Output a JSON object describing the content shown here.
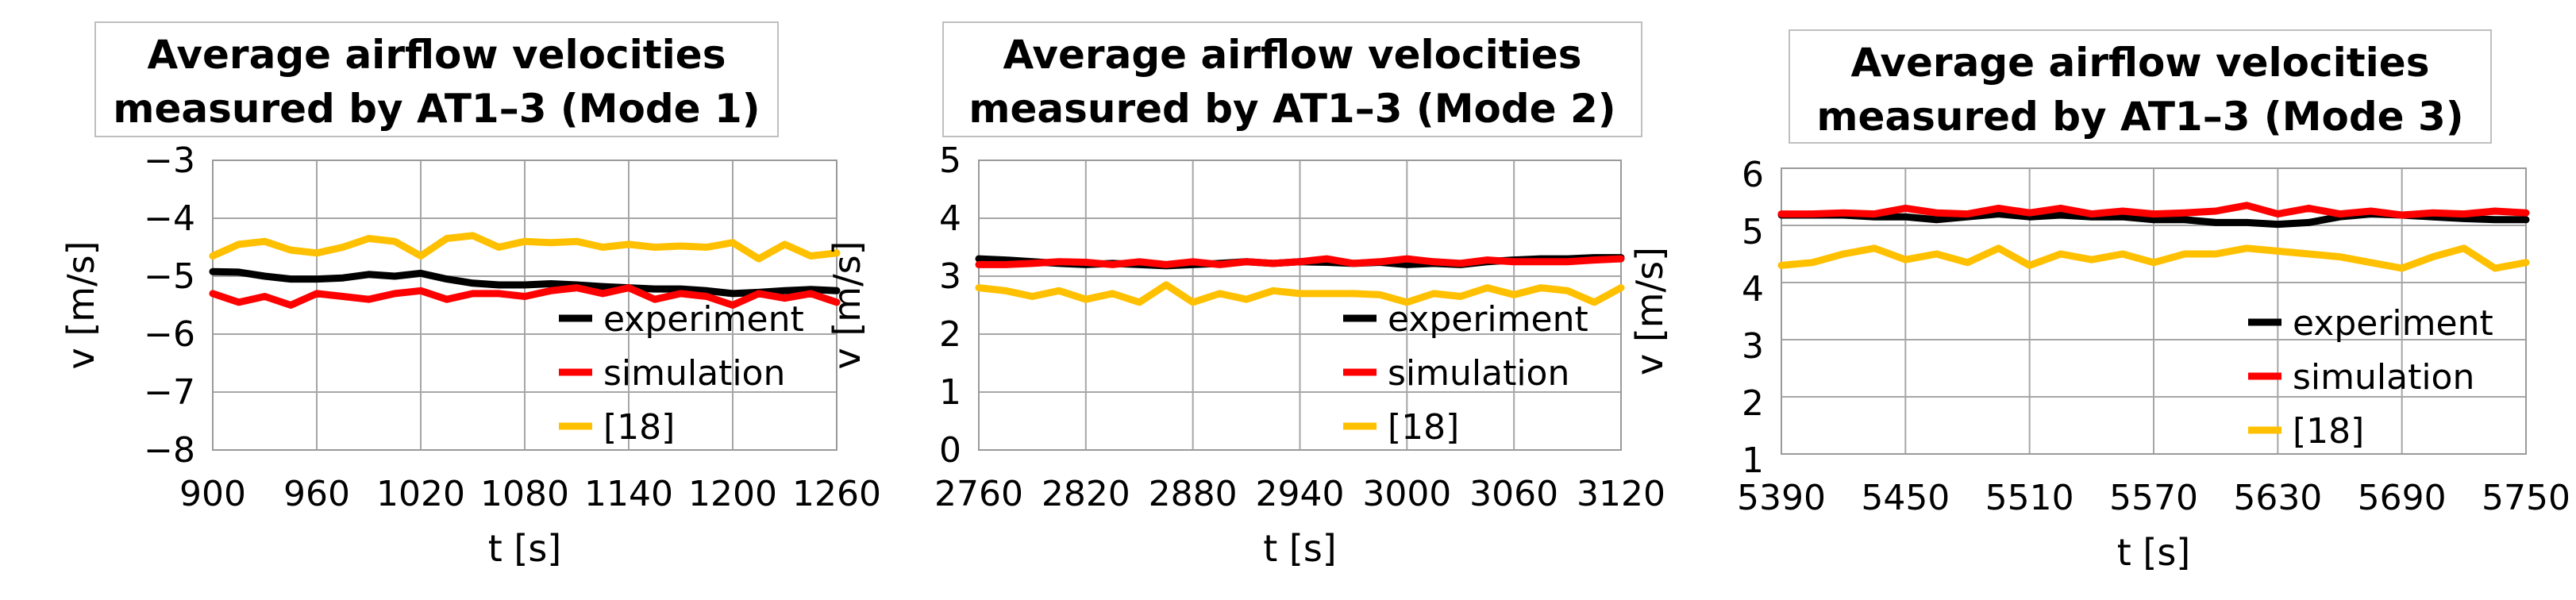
{
  "chart_data": [
    {
      "type": "line",
      "title": [
        "Average airflow velocities",
        "measured by AT1–3 (Mode 1)"
      ],
      "xlabel": "t [s]",
      "ylabel": "v [m/s]",
      "xlim": [
        900,
        1260
      ],
      "ylim": [
        -8,
        -3
      ],
      "xticks": [
        900,
        960,
        1020,
        1080,
        1140,
        1200,
        1260
      ],
      "yticks": [
        -8,
        -7,
        -6,
        -5,
        -4,
        -3
      ],
      "xtick_labels": [
        "900",
        "960",
        "1020",
        "1080",
        "1140",
        "1200",
        "1260"
      ],
      "ytick_labels": [
        "−8",
        "−7",
        "−6",
        "−5",
        "−4",
        "−3"
      ],
      "grid": true,
      "legend_position": "bottom-right",
      "series": [
        {
          "name": "experiment",
          "color": "#000000",
          "x": [
            900,
            915,
            930,
            945,
            960,
            975,
            990,
            1005,
            1020,
            1035,
            1050,
            1065,
            1080,
            1095,
            1110,
            1125,
            1140,
            1155,
            1170,
            1185,
            1200,
            1215,
            1230,
            1245,
            1260
          ],
          "y": [
            -4.92,
            -4.93,
            -5.0,
            -5.05,
            -5.05,
            -5.03,
            -4.97,
            -5.0,
            -4.95,
            -5.05,
            -5.12,
            -5.15,
            -5.15,
            -5.13,
            -5.15,
            -5.18,
            -5.2,
            -5.22,
            -5.22,
            -5.25,
            -5.3,
            -5.28,
            -5.25,
            -5.23,
            -5.25
          ]
        },
        {
          "name": "simulation",
          "color": "#ff0000",
          "x": [
            900,
            915,
            930,
            945,
            960,
            975,
            990,
            1005,
            1020,
            1035,
            1050,
            1065,
            1080,
            1095,
            1110,
            1125,
            1140,
            1155,
            1170,
            1185,
            1200,
            1215,
            1230,
            1245,
            1260
          ],
          "y": [
            -5.3,
            -5.45,
            -5.35,
            -5.5,
            -5.3,
            -5.35,
            -5.4,
            -5.3,
            -5.25,
            -5.4,
            -5.3,
            -5.3,
            -5.35,
            -5.25,
            -5.2,
            -5.3,
            -5.2,
            -5.4,
            -5.3,
            -5.35,
            -5.5,
            -5.3,
            -5.38,
            -5.3,
            -5.45
          ]
        },
        {
          "name": "[18]",
          "color": "#ffc000",
          "x": [
            900,
            915,
            930,
            945,
            960,
            975,
            990,
            1005,
            1020,
            1035,
            1050,
            1065,
            1080,
            1095,
            1110,
            1125,
            1140,
            1155,
            1170,
            1185,
            1200,
            1215,
            1230,
            1245,
            1260
          ],
          "y": [
            -4.65,
            -4.45,
            -4.4,
            -4.55,
            -4.6,
            -4.5,
            -4.35,
            -4.4,
            -4.65,
            -4.35,
            -4.3,
            -4.5,
            -4.4,
            -4.42,
            -4.4,
            -4.5,
            -4.45,
            -4.5,
            -4.48,
            -4.5,
            -4.42,
            -4.7,
            -4.45,
            -4.65,
            -4.6
          ]
        }
      ]
    },
    {
      "type": "line",
      "title": [
        "Average airflow velocities",
        "measured by AT1–3 (Mode 2)"
      ],
      "xlabel": "t [s]",
      "ylabel": "v [m/s]",
      "xlim": [
        2760,
        3120
      ],
      "ylim": [
        0,
        5
      ],
      "xticks": [
        2760,
        2820,
        2880,
        2940,
        3000,
        3060,
        3120
      ],
      "yticks": [
        0,
        1,
        2,
        3,
        4,
        5
      ],
      "xtick_labels": [
        "2760",
        "2820",
        "2880",
        "2940",
        "3000",
        "3060",
        "3120"
      ],
      "ytick_labels": [
        "0",
        "1",
        "2",
        "3",
        "4",
        "5"
      ],
      "grid": true,
      "legend_position": "bottom-right",
      "series": [
        {
          "name": "experiment",
          "color": "#000000",
          "x": [
            2760,
            2775,
            2790,
            2805,
            2820,
            2835,
            2850,
            2865,
            2880,
            2895,
            2910,
            2925,
            2940,
            2955,
            2970,
            2985,
            3000,
            3015,
            3030,
            3045,
            3060,
            3075,
            3090,
            3105,
            3120
          ],
          "y": [
            3.3,
            3.28,
            3.25,
            3.22,
            3.2,
            3.22,
            3.2,
            3.18,
            3.2,
            3.22,
            3.25,
            3.22,
            3.25,
            3.24,
            3.22,
            3.24,
            3.2,
            3.22,
            3.2,
            3.25,
            3.28,
            3.3,
            3.3,
            3.32,
            3.32
          ]
        },
        {
          "name": "simulation",
          "color": "#ff0000",
          "x": [
            2760,
            2775,
            2790,
            2805,
            2820,
            2835,
            2850,
            2865,
            2880,
            2895,
            2910,
            2925,
            2940,
            2955,
            2970,
            2985,
            3000,
            3015,
            3030,
            3045,
            3060,
            3075,
            3090,
            3105,
            3120
          ],
          "y": [
            3.2,
            3.2,
            3.22,
            3.25,
            3.24,
            3.2,
            3.25,
            3.2,
            3.25,
            3.2,
            3.25,
            3.22,
            3.25,
            3.3,
            3.22,
            3.25,
            3.3,
            3.25,
            3.22,
            3.28,
            3.25,
            3.25,
            3.25,
            3.28,
            3.3
          ]
        },
        {
          "name": "[18]",
          "color": "#ffc000",
          "x": [
            2760,
            2775,
            2790,
            2805,
            2820,
            2835,
            2850,
            2865,
            2880,
            2895,
            2910,
            2925,
            2940,
            2955,
            2970,
            2985,
            3000,
            3015,
            3030,
            3045,
            3060,
            3075,
            3090,
            3105,
            3120
          ],
          "y": [
            2.8,
            2.75,
            2.65,
            2.75,
            2.6,
            2.7,
            2.55,
            2.85,
            2.55,
            2.7,
            2.6,
            2.75,
            2.7,
            2.7,
            2.7,
            2.68,
            2.55,
            2.7,
            2.65,
            2.8,
            2.68,
            2.8,
            2.75,
            2.55,
            2.8
          ]
        }
      ]
    },
    {
      "type": "line",
      "title": [
        "Average airflow velocities",
        "measured by AT1–3 (Mode 3)"
      ],
      "xlabel": "t [s]",
      "ylabel": "v [m/s]",
      "xlim": [
        5390,
        5750
      ],
      "ylim": [
        1,
        6
      ],
      "xticks": [
        5390,
        5450,
        5510,
        5570,
        5630,
        5690,
        5750
      ],
      "yticks": [
        1,
        2,
        3,
        4,
        5,
        6
      ],
      "xtick_labels": [
        "5390",
        "5450",
        "5510",
        "5570",
        "5630",
        "5690",
        "5750"
      ],
      "ytick_labels": [
        "1",
        "2",
        "3",
        "4",
        "5",
        "6"
      ],
      "grid": true,
      "legend_position": "bottom-right",
      "series": [
        {
          "name": "experiment",
          "color": "#000000",
          "x": [
            5390,
            5405,
            5420,
            5435,
            5450,
            5465,
            5480,
            5495,
            5510,
            5525,
            5540,
            5555,
            5570,
            5585,
            5600,
            5615,
            5630,
            5645,
            5660,
            5675,
            5690,
            5705,
            5720,
            5735,
            5750
          ],
          "y": [
            5.18,
            5.18,
            5.18,
            5.15,
            5.15,
            5.1,
            5.15,
            5.2,
            5.15,
            5.18,
            5.15,
            5.15,
            5.1,
            5.1,
            5.05,
            5.05,
            5.02,
            5.05,
            5.15,
            5.2,
            5.18,
            5.15,
            5.12,
            5.1,
            5.1
          ]
        },
        {
          "name": "simulation",
          "color": "#ff0000",
          "x": [
            5390,
            5405,
            5420,
            5435,
            5450,
            5465,
            5480,
            5495,
            5510,
            5525,
            5540,
            5555,
            5570,
            5585,
            5600,
            5615,
            5630,
            5645,
            5660,
            5675,
            5690,
            5705,
            5720,
            5735,
            5750
          ],
          "y": [
            5.2,
            5.2,
            5.22,
            5.2,
            5.3,
            5.22,
            5.2,
            5.3,
            5.22,
            5.3,
            5.2,
            5.25,
            5.2,
            5.22,
            5.25,
            5.35,
            5.2,
            5.3,
            5.2,
            5.25,
            5.18,
            5.22,
            5.2,
            5.25,
            5.22
          ]
        },
        {
          "name": "[18]",
          "color": "#ffc000",
          "x": [
            5390,
            5405,
            5420,
            5435,
            5450,
            5465,
            5480,
            5495,
            5510,
            5525,
            5540,
            5555,
            5570,
            5585,
            5600,
            5615,
            5630,
            5645,
            5660,
            5675,
            5690,
            5705,
            5720,
            5735,
            5750
          ],
          "y": [
            4.3,
            4.35,
            4.5,
            4.6,
            4.4,
            4.5,
            4.35,
            4.6,
            4.3,
            4.5,
            4.4,
            4.5,
            4.35,
            4.5,
            4.5,
            4.6,
            4.55,
            4.5,
            4.45,
            4.35,
            4.25,
            4.45,
            4.6,
            4.25,
            4.35
          ]
        }
      ]
    }
  ]
}
